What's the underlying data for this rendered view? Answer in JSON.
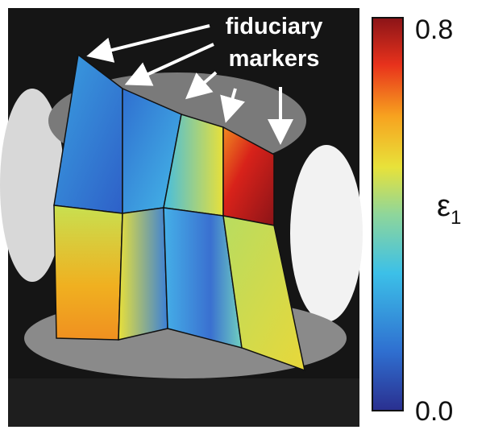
{
  "annotation": {
    "lines": [
      "fiduciary",
      "markers"
    ]
  },
  "colorbar": {
    "label": "ε",
    "subscript": "1",
    "ticks": [
      {
        "value": 0.8,
        "label": "0.8"
      },
      {
        "value": 0.0,
        "label": "0.0"
      }
    ]
  }
}
